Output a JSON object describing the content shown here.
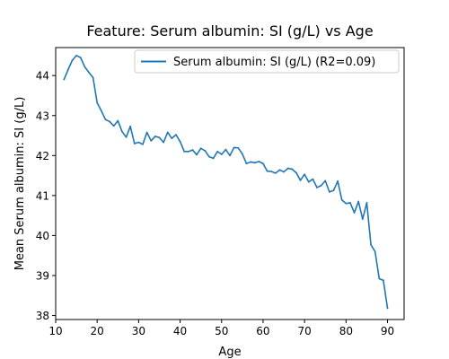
{
  "chart_data": {
    "type": "line",
    "title": "Feature: Serum albumin:  SI (g/L) vs Age",
    "xlabel": "Age",
    "ylabel": "Mean Serum albumin:  SI (g/L)",
    "xlim": [
      10,
      94
    ],
    "ylim": [
      37.9,
      44.7
    ],
    "xticks": [
      10,
      20,
      30,
      40,
      50,
      60,
      70,
      80,
      90
    ],
    "yticks": [
      38,
      39,
      40,
      41,
      42,
      43,
      44
    ],
    "grid": false,
    "legend_position": "top-right",
    "series": [
      {
        "name": "Serum albumin:  SI (g/L) (R2=0.09)",
        "color": "#1f77b4",
        "x": [
          12,
          13,
          14,
          15,
          16,
          17,
          18,
          19,
          20,
          21,
          22,
          23,
          24,
          25,
          26,
          27,
          28,
          29,
          30,
          31,
          32,
          33,
          34,
          35,
          36,
          37,
          38,
          39,
          40,
          41,
          42,
          43,
          44,
          45,
          46,
          47,
          48,
          49,
          50,
          51,
          52,
          53,
          54,
          55,
          56,
          57,
          58,
          59,
          60,
          61,
          62,
          63,
          64,
          65,
          66,
          67,
          68,
          69,
          70,
          71,
          72,
          73,
          74,
          75,
          76,
          77,
          78,
          79,
          80,
          81,
          82,
          83,
          84,
          85,
          86,
          87,
          88,
          89,
          90
        ],
        "y": [
          43.9,
          44.15,
          44.38,
          44.5,
          44.45,
          44.22,
          44.08,
          43.95,
          43.32,
          43.12,
          42.9,
          42.85,
          42.74,
          42.87,
          42.6,
          42.46,
          42.73,
          42.3,
          42.33,
          42.28,
          42.58,
          42.37,
          42.48,
          42.45,
          42.33,
          42.58,
          42.43,
          42.52,
          42.35,
          42.1,
          42.1,
          42.14,
          42.02,
          42.18,
          42.12,
          41.97,
          41.93,
          42.1,
          42.03,
          42.15,
          42.0,
          42.2,
          42.19,
          42.04,
          41.8,
          41.84,
          41.82,
          41.85,
          41.8,
          41.61,
          41.6,
          41.56,
          41.64,
          41.59,
          41.68,
          41.66,
          41.57,
          41.38,
          41.53,
          41.34,
          41.41,
          41.2,
          41.25,
          41.37,
          41.09,
          41.13,
          41.36,
          40.89,
          40.8,
          40.82,
          40.57,
          40.85,
          40.41,
          40.82,
          39.77,
          39.6,
          38.92,
          38.88,
          38.18
        ]
      }
    ]
  }
}
